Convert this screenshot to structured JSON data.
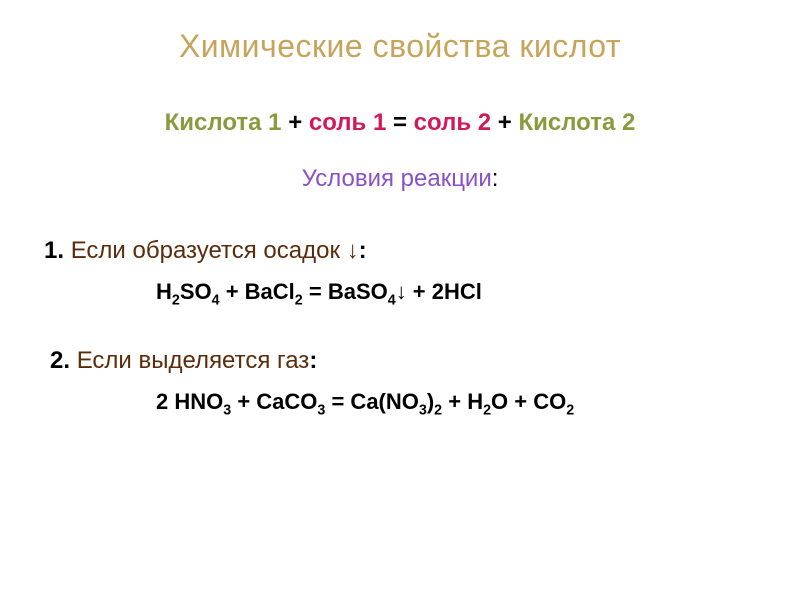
{
  "colors": {
    "title": "#c8a45a",
    "acid": "#8a9a3d",
    "salt": "#d11a5a",
    "op": "#000000",
    "conditions": "#8a50c7",
    "body_num": "#000000",
    "body_text": "#5a2c0c",
    "body_colon": "#000000",
    "equation": "#000000",
    "background": "#ffffff"
  },
  "typography": {
    "title_fontsize": 32,
    "scheme_fontsize": 24,
    "conditions_fontsize": 24,
    "cond_line_fontsize": 24,
    "equation_fontsize": 22,
    "font_family": "Arial"
  },
  "title": "Химические свойства кислот",
  "scheme": {
    "acid1": "Кислота 1",
    "plus1": "+",
    "salt1": "соль 1",
    "eq": "=",
    "salt2": "соль 2",
    "plus2": "+",
    "acid2": "Кислота 2"
  },
  "conditions_label": "Условия реакции",
  "items": [
    {
      "num": "1.",
      "text": "Если образуется осадок ↓",
      "colon": ":",
      "equation_html": "H<sub>2</sub>SO<sub>4</sub> + BaCl<sub>2</sub> =  BaSO<sub>4</sub>↓ + 2HCl"
    },
    {
      "num": "2.",
      "text": "Если выделяется газ",
      "colon": ":",
      "equation_html": "2 HNO<sub>3</sub> + CaCO<sub>3</sub>  = Ca(NO<sub>3</sub>)<sub>2</sub> + H<sub>2</sub>O + CO<sub>2</sub>"
    }
  ]
}
